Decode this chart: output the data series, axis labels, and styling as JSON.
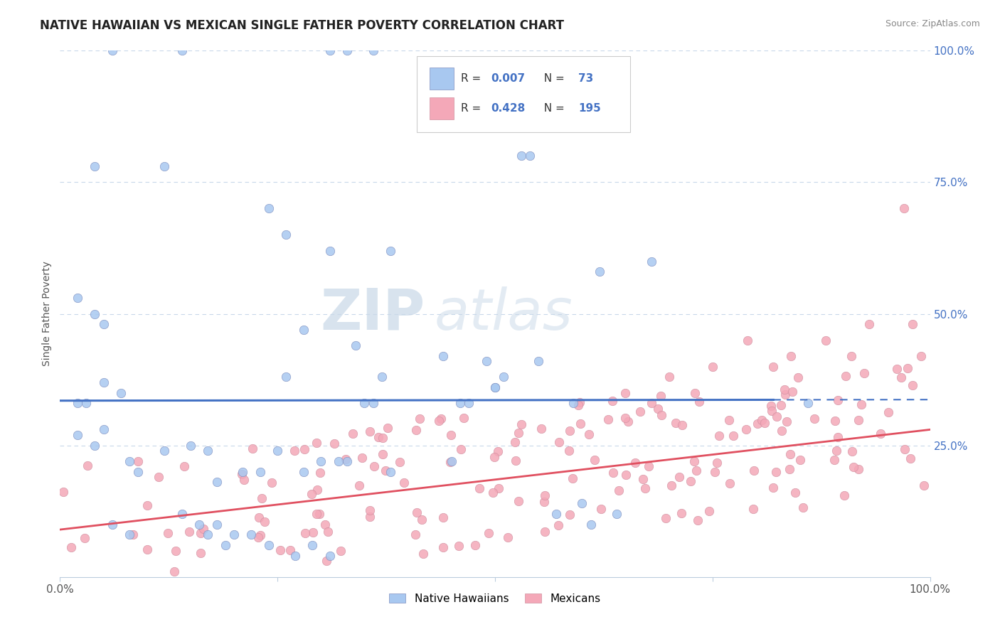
{
  "title": "NATIVE HAWAIIAN VS MEXICAN SINGLE FATHER POVERTY CORRELATION CHART",
  "source": "Source: ZipAtlas.com",
  "ylabel": "Single Father Poverty",
  "legend_label1": "Native Hawaiians",
  "legend_label2": "Mexicans",
  "R1": 0.007,
  "N1": 73,
  "R2": 0.428,
  "N2": 195,
  "color_blue": "#a8c8f0",
  "color_pink": "#f4a8b8",
  "color_blue_line": "#4472c4",
  "color_pink_line": "#e05060",
  "watermark_zip": "ZIP",
  "watermark_atlas": "atlas",
  "background_color": "#ffffff",
  "grid_color": "#c8d8ea",
  "title_fontsize": 12,
  "tick_label_color": "#4472c4",
  "source_color": "#888888"
}
